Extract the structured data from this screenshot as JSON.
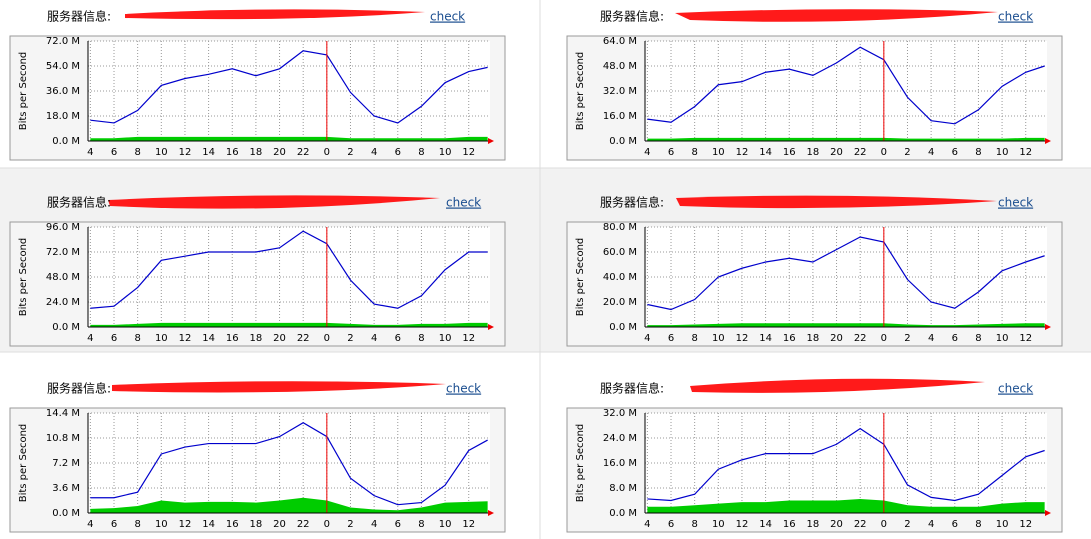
{
  "chart_data": [
    {
      "type": "line",
      "title": "服务器信息:",
      "link": "check",
      "ylabel": "Bits per Second",
      "grid": true,
      "vline": 20,
      "x": [
        0,
        2,
        4,
        6,
        8,
        10,
        12,
        14,
        16,
        18,
        20,
        22,
        24,
        26,
        28,
        30,
        32,
        33.6
      ],
      "xlim": [
        -0.2,
        33.8
      ],
      "xticks": [
        {
          "value": 0,
          "label": "4"
        },
        {
          "value": 2,
          "label": "6"
        },
        {
          "value": 4,
          "label": "8"
        },
        {
          "value": 6,
          "label": "10"
        },
        {
          "value": 8,
          "label": "12"
        },
        {
          "value": 10,
          "label": "14"
        },
        {
          "value": 12,
          "label": "16"
        },
        {
          "value": 14,
          "label": "18"
        },
        {
          "value": 16,
          "label": "20"
        },
        {
          "value": 18,
          "label": "22"
        },
        {
          "value": 20,
          "label": "0"
        },
        {
          "value": 22,
          "label": "2"
        },
        {
          "value": 24,
          "label": "4"
        },
        {
          "value": 26,
          "label": "6"
        },
        {
          "value": 28,
          "label": "8"
        },
        {
          "value": 30,
          "label": "10"
        },
        {
          "value": 32,
          "label": "12"
        }
      ],
      "ylim": [
        0,
        72
      ],
      "yticks": [
        {
          "value": 0,
          "label": "0.0 M"
        },
        {
          "value": 18,
          "label": "18.0 M"
        },
        {
          "value": 36,
          "label": "36.0 M"
        },
        {
          "value": 54,
          "label": "54.0 M"
        },
        {
          "value": 72,
          "label": "72.0 M"
        }
      ],
      "series": [
        {
          "color": "#0000cc",
          "values": [
            15,
            13,
            22,
            40,
            45,
            48,
            52,
            47,
            52,
            65,
            62,
            35,
            18,
            13,
            25,
            42,
            50,
            53
          ]
        },
        {
          "color": "#00cc00",
          "fill": true,
          "values": [
            2,
            2,
            3,
            3,
            3,
            3,
            3,
            3,
            3,
            3,
            3,
            2,
            2,
            2,
            2,
            2,
            3,
            3
          ]
        }
      ]
    },
    {
      "type": "line",
      "title": "服务器信息:",
      "link": "check",
      "ylabel": "Bits per Second",
      "grid": true,
      "vline": 20,
      "x": [
        0,
        2,
        4,
        6,
        8,
        10,
        12,
        14,
        16,
        18,
        20,
        22,
        24,
        26,
        28,
        30,
        32,
        33.6
      ],
      "xlim": [
        -0.2,
        33.8
      ],
      "xticks": [
        {
          "value": 0,
          "label": "4"
        },
        {
          "value": 2,
          "label": "6"
        },
        {
          "value": 4,
          "label": "8"
        },
        {
          "value": 6,
          "label": "10"
        },
        {
          "value": 8,
          "label": "12"
        },
        {
          "value": 10,
          "label": "14"
        },
        {
          "value": 12,
          "label": "16"
        },
        {
          "value": 14,
          "label": "18"
        },
        {
          "value": 16,
          "label": "20"
        },
        {
          "value": 18,
          "label": "22"
        },
        {
          "value": 20,
          "label": "0"
        },
        {
          "value": 22,
          "label": "2"
        },
        {
          "value": 24,
          "label": "4"
        },
        {
          "value": 26,
          "label": "6"
        },
        {
          "value": 28,
          "label": "8"
        },
        {
          "value": 30,
          "label": "10"
        },
        {
          "value": 32,
          "label": "12"
        }
      ],
      "ylim": [
        0,
        64
      ],
      "yticks": [
        {
          "value": 0,
          "label": "0.0 M"
        },
        {
          "value": 16,
          "label": "16.0 M"
        },
        {
          "value": 32,
          "label": "32.0 M"
        },
        {
          "value": 48,
          "label": "48.0 M"
        },
        {
          "value": 64,
          "label": "64.0 M"
        }
      ],
      "series": [
        {
          "color": "#0000cc",
          "values": [
            14,
            12,
            22,
            36,
            38,
            44,
            46,
            42,
            50,
            60,
            52,
            28,
            13,
            11,
            20,
            35,
            44,
            48
          ]
        },
        {
          "color": "#00cc00",
          "fill": true,
          "values": [
            1.5,
            1.5,
            2,
            2,
            2,
            2,
            2,
            2,
            2,
            2,
            2,
            1.5,
            1.5,
            1.5,
            1.5,
            1.5,
            2,
            2
          ]
        }
      ]
    },
    {
      "type": "line",
      "title": "服务器信息:",
      "link": "check",
      "ylabel": "Bits per Second",
      "grid": true,
      "vline": 20,
      "x": [
        0,
        2,
        4,
        6,
        8,
        10,
        12,
        14,
        16,
        18,
        20,
        22,
        24,
        26,
        28,
        30,
        32,
        33.6
      ],
      "xlim": [
        -0.2,
        33.8
      ],
      "xticks": [
        {
          "value": 0,
          "label": "4"
        },
        {
          "value": 2,
          "label": "6"
        },
        {
          "value": 4,
          "label": "8"
        },
        {
          "value": 6,
          "label": "10"
        },
        {
          "value": 8,
          "label": "12"
        },
        {
          "value": 10,
          "label": "14"
        },
        {
          "value": 12,
          "label": "16"
        },
        {
          "value": 14,
          "label": "18"
        },
        {
          "value": 16,
          "label": "20"
        },
        {
          "value": 18,
          "label": "22"
        },
        {
          "value": 20,
          "label": "0"
        },
        {
          "value": 22,
          "label": "2"
        },
        {
          "value": 24,
          "label": "4"
        },
        {
          "value": 26,
          "label": "6"
        },
        {
          "value": 28,
          "label": "8"
        },
        {
          "value": 30,
          "label": "10"
        },
        {
          "value": 32,
          "label": "12"
        }
      ],
      "ylim": [
        0,
        96
      ],
      "yticks": [
        {
          "value": 0,
          "label": "0.0 M"
        },
        {
          "value": 24,
          "label": "24.0 M"
        },
        {
          "value": 48,
          "label": "48.0 M"
        },
        {
          "value": 72,
          "label": "72.0 M"
        },
        {
          "value": 96,
          "label": "96.0 M"
        }
      ],
      "series": [
        {
          "color": "#0000cc",
          "values": [
            18,
            20,
            38,
            64,
            68,
            72,
            72,
            72,
            76,
            92,
            80,
            45,
            22,
            18,
            30,
            55,
            72,
            72
          ]
        },
        {
          "color": "#00cc00",
          "fill": true,
          "values": [
            2,
            2,
            3,
            4,
            4,
            4,
            4,
            4,
            4,
            4,
            4,
            3,
            2,
            2,
            3,
            3,
            4,
            4
          ]
        }
      ]
    },
    {
      "type": "line",
      "title": "服务器信息:",
      "link": "check",
      "ylabel": "Bits per Second",
      "grid": true,
      "vline": 20,
      "x": [
        0,
        2,
        4,
        6,
        8,
        10,
        12,
        14,
        16,
        18,
        20,
        22,
        24,
        26,
        28,
        30,
        32,
        33.6
      ],
      "xlim": [
        -0.2,
        33.8
      ],
      "xticks": [
        {
          "value": 0,
          "label": "4"
        },
        {
          "value": 2,
          "label": "6"
        },
        {
          "value": 4,
          "label": "8"
        },
        {
          "value": 6,
          "label": "10"
        },
        {
          "value": 8,
          "label": "12"
        },
        {
          "value": 10,
          "label": "14"
        },
        {
          "value": 12,
          "label": "16"
        },
        {
          "value": 14,
          "label": "18"
        },
        {
          "value": 16,
          "label": "20"
        },
        {
          "value": 18,
          "label": "22"
        },
        {
          "value": 20,
          "label": "0"
        },
        {
          "value": 22,
          "label": "2"
        },
        {
          "value": 24,
          "label": "4"
        },
        {
          "value": 26,
          "label": "6"
        },
        {
          "value": 28,
          "label": "8"
        },
        {
          "value": 30,
          "label": "10"
        },
        {
          "value": 32,
          "label": "12"
        }
      ],
      "ylim": [
        0,
        80
      ],
      "yticks": [
        {
          "value": 0,
          "label": "0.0 M"
        },
        {
          "value": 20,
          "label": "20.0 M"
        },
        {
          "value": 40,
          "label": "40.0 M"
        },
        {
          "value": 60,
          "label": "60.0 M"
        },
        {
          "value": 80,
          "label": "80.0 M"
        }
      ],
      "series": [
        {
          "color": "#0000cc",
          "values": [
            18,
            14,
            22,
            40,
            47,
            52,
            55,
            52,
            62,
            72,
            68,
            38,
            20,
            15,
            28,
            45,
            52,
            57
          ]
        },
        {
          "color": "#00cc00",
          "fill": true,
          "values": [
            1.5,
            1.5,
            2,
            2.5,
            3,
            3,
            3,
            3,
            3,
            3,
            3,
            2,
            1.5,
            1.5,
            2,
            2.5,
            3,
            3
          ]
        }
      ]
    },
    {
      "type": "line",
      "title": "服务器信息:",
      "link": "check",
      "ylabel": "Bits per Second",
      "grid": true,
      "vline": 20,
      "x": [
        0,
        2,
        4,
        6,
        8,
        10,
        12,
        14,
        16,
        18,
        20,
        22,
        24,
        26,
        28,
        30,
        32,
        33.6
      ],
      "xlim": [
        -0.2,
        33.8
      ],
      "xticks": [
        {
          "value": 0,
          "label": "4"
        },
        {
          "value": 2,
          "label": "6"
        },
        {
          "value": 4,
          "label": "8"
        },
        {
          "value": 6,
          "label": "10"
        },
        {
          "value": 8,
          "label": "12"
        },
        {
          "value": 10,
          "label": "14"
        },
        {
          "value": 12,
          "label": "16"
        },
        {
          "value": 14,
          "label": "18"
        },
        {
          "value": 16,
          "label": "20"
        },
        {
          "value": 18,
          "label": "22"
        },
        {
          "value": 20,
          "label": "0"
        },
        {
          "value": 22,
          "label": "2"
        },
        {
          "value": 24,
          "label": "4"
        },
        {
          "value": 26,
          "label": "6"
        },
        {
          "value": 28,
          "label": "8"
        },
        {
          "value": 30,
          "label": "10"
        },
        {
          "value": 32,
          "label": "12"
        }
      ],
      "ylim": [
        0,
        14.4
      ],
      "yticks": [
        {
          "value": 0,
          "label": "0.0 M"
        },
        {
          "value": 3.6,
          "label": "3.6 M"
        },
        {
          "value": 7.2,
          "label": "7.2 M"
        },
        {
          "value": 10.8,
          "label": "10.8 M"
        },
        {
          "value": 14.4,
          "label": "14.4 M"
        }
      ],
      "series": [
        {
          "color": "#0000cc",
          "values": [
            2.2,
            2.2,
            3,
            8.5,
            9.5,
            10,
            10,
            10,
            11,
            13,
            11,
            5,
            2.5,
            1.2,
            1.5,
            4,
            9,
            10.5
          ]
        },
        {
          "color": "#00cc00",
          "fill": true,
          "values": [
            0.6,
            0.7,
            1,
            1.8,
            1.5,
            1.6,
            1.6,
            1.5,
            1.8,
            2.2,
            1.8,
            0.8,
            0.5,
            0.4,
            0.8,
            1.5,
            1.6,
            1.7
          ]
        }
      ]
    },
    {
      "type": "line",
      "title": "服务器信息:",
      "link": "check",
      "ylabel": "Bits per Second",
      "grid": true,
      "vline": 20,
      "x": [
        0,
        2,
        4,
        6,
        8,
        10,
        12,
        14,
        16,
        18,
        20,
        22,
        24,
        26,
        28,
        30,
        32,
        33.6
      ],
      "xlim": [
        -0.2,
        33.8
      ],
      "xticks": [
        {
          "value": 0,
          "label": "4"
        },
        {
          "value": 2,
          "label": "6"
        },
        {
          "value": 4,
          "label": "8"
        },
        {
          "value": 6,
          "label": "10"
        },
        {
          "value": 8,
          "label": "12"
        },
        {
          "value": 10,
          "label": "14"
        },
        {
          "value": 12,
          "label": "16"
        },
        {
          "value": 14,
          "label": "18"
        },
        {
          "value": 16,
          "label": "20"
        },
        {
          "value": 18,
          "label": "22"
        },
        {
          "value": 20,
          "label": "0"
        },
        {
          "value": 22,
          "label": "2"
        },
        {
          "value": 24,
          "label": "4"
        },
        {
          "value": 26,
          "label": "6"
        },
        {
          "value": 28,
          "label": "8"
        },
        {
          "value": 30,
          "label": "10"
        },
        {
          "value": 32,
          "label": "12"
        }
      ],
      "ylim": [
        0,
        32
      ],
      "yticks": [
        {
          "value": 0,
          "label": "0.0 M"
        },
        {
          "value": 8,
          "label": "8.0 M"
        },
        {
          "value": 16,
          "label": "16.0 M"
        },
        {
          "value": 24,
          "label": "24.0 M"
        },
        {
          "value": 32,
          "label": "32.0 M"
        }
      ],
      "series": [
        {
          "color": "#0000cc",
          "values": [
            4.5,
            4,
            6,
            14,
            17,
            19,
            19,
            19,
            22,
            27,
            22,
            9,
            5,
            4,
            6,
            12,
            18,
            20
          ]
        },
        {
          "color": "#00cc00",
          "fill": true,
          "values": [
            2,
            2,
            2.5,
            3,
            3.5,
            3.5,
            4,
            4,
            4,
            4.5,
            4,
            2.5,
            2,
            2,
            2,
            3,
            3.5,
            3.5
          ]
        }
      ]
    }
  ]
}
